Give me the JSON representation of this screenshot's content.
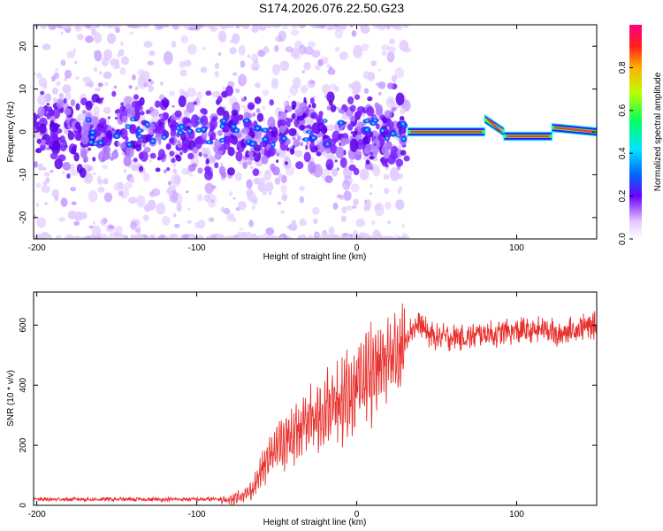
{
  "title": "S174.2026.076.22.50.G23",
  "chart_data": [
    {
      "type": "heatmap",
      "name": "spectrogram",
      "title": "S174.2026.076.22.50.G23",
      "xlabel": "Height of straight line (km)",
      "ylabel": "Frequency (Hz)",
      "xlim": [
        -202,
        150
      ],
      "ylim": [
        -25,
        25
      ],
      "xticks": [
        -200,
        -100,
        0,
        100
      ],
      "yticks": [
        -20,
        -10,
        0,
        10,
        20
      ],
      "colorbar": {
        "label": "Normalized spectral amplitude",
        "range": [
          0,
          1
        ],
        "ticks": [
          0.0,
          0.2,
          0.4,
          0.6,
          0.8
        ]
      },
      "regions": [
        {
          "name": "diffuse noise",
          "x_range": [
            -202,
            32
          ],
          "freq_spread_hz": 25,
          "amplitude": "low"
        },
        {
          "name": "tracked line",
          "x_range": [
            32,
            80
          ],
          "freq_hz": 0,
          "amplitude": 1.0
        },
        {
          "name": "tracked line",
          "x_range": [
            80,
            92
          ],
          "freq_hz": [
            3,
            0
          ],
          "amplitude": 0.9
        },
        {
          "name": "tracked line",
          "x_range": [
            92,
            122
          ],
          "freq_hz": -1,
          "amplitude": 1.0
        },
        {
          "name": "tracked line",
          "x_range": [
            122,
            150
          ],
          "freq_hz": [
            1,
            0
          ],
          "amplitude": 0.9
        }
      ]
    },
    {
      "type": "line",
      "name": "snr",
      "xlabel": "Height of straight line (km)",
      "ylabel": "SNR (10 * v/v)",
      "xlim": [
        -202,
        150
      ],
      "ylim": [
        0,
        710
      ],
      "xticks": [
        -200,
        -100,
        0,
        100
      ],
      "yticks": [
        0,
        200,
        400,
        600
      ],
      "color": "#e8302c",
      "series": [
        {
          "name": "SNR",
          "x": [
            -202,
            -180,
            -160,
            -140,
            -120,
            -100,
            -90,
            -80,
            -70,
            -65,
            -60,
            -55,
            -50,
            -45,
            -40,
            -35,
            -30,
            -25,
            -20,
            -15,
            -10,
            -5,
            0,
            5,
            10,
            15,
            20,
            25,
            30,
            35,
            40,
            45,
            50,
            60,
            70,
            80,
            90,
            100,
            110,
            120,
            125,
            130,
            140,
            150
          ],
          "y": [
            20,
            20,
            20,
            20,
            20,
            20,
            20,
            22,
            40,
            60,
            120,
            170,
            210,
            240,
            250,
            270,
            300,
            320,
            340,
            360,
            370,
            390,
            430,
            460,
            480,
            500,
            520,
            540,
            560,
            590,
            600,
            570,
            560,
            560,
            560,
            570,
            570,
            580,
            580,
            590,
            560,
            580,
            590,
            600
          ]
        }
      ]
    }
  ]
}
